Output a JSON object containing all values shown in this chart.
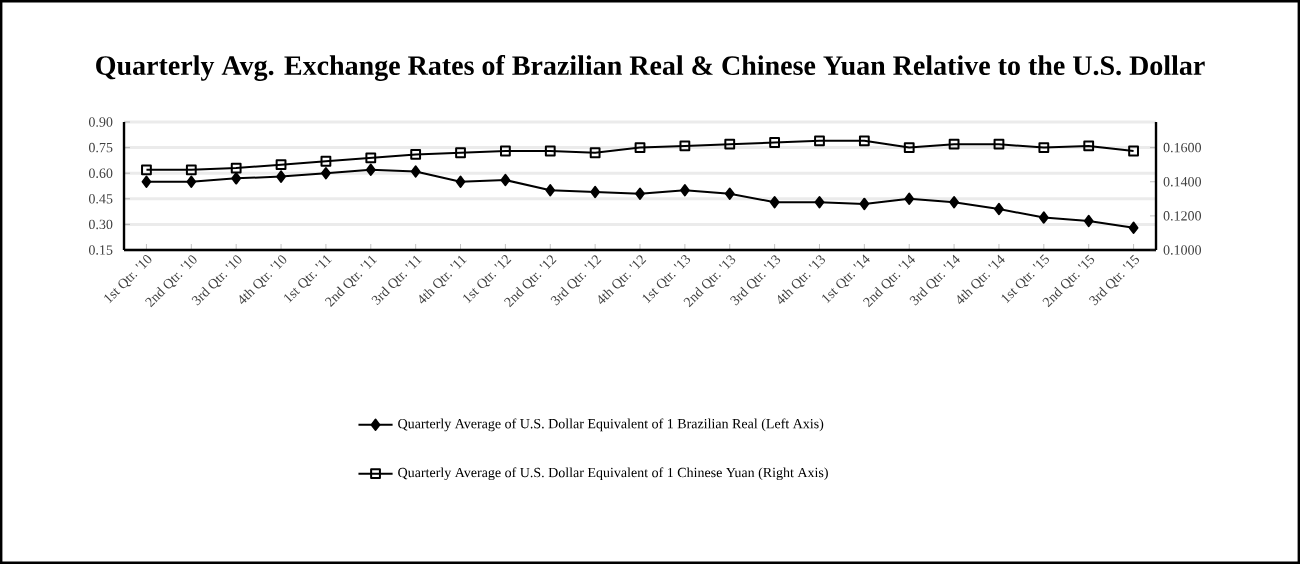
{
  "chart_data": {
    "type": "line",
    "title": "Quarterly Avg. Exchange Rates of Brazilian Real & Chinese Yuan Relative to the U.S. Dollar",
    "categories": [
      "1st Qtr. '10",
      "2nd Qtr. '10",
      "3rd Qtr. '10",
      "4th Qtr. '10",
      "1st Qtr. '11",
      "2nd Qtr. '11",
      "3rd Qtr. '11",
      "4th Qtr. '11",
      "1st Qtr. '12",
      "2nd Qtr. '12",
      "3rd Qtr. '12",
      "4th Qtr. '12",
      "1st Qtr. '13",
      "2nd Qtr. '13",
      "3rd Qtr. '13",
      "4th Qtr. '13",
      "1st Qtr. '14",
      "2nd Qtr. '14",
      "3rd Qtr. '14",
      "4th Qtr. '14",
      "1st Qtr. '15",
      "2nd Qtr. '15",
      "3rd Qtr. '15"
    ],
    "series": [
      {
        "name": "Quarterly Average of U.S. Dollar Equivalent of 1 Brazilian Real (Left Axis)",
        "color": "#000000",
        "marker": "diamond",
        "values": [
          0.55,
          0.55,
          0.57,
          0.58,
          0.6,
          0.62,
          0.61,
          0.55,
          0.56,
          0.5,
          0.49,
          0.48,
          0.5,
          0.48,
          0.43,
          0.43,
          0.42,
          0.45,
          0.43,
          0.39,
          0.34,
          0.32,
          0.28
        ]
      },
      {
        "name": "Quarterly Average of U.S. Dollar Equivalent of 1 Chinese Yuan (Right Axis)",
        "color": "#000000",
        "marker": "square",
        "axis": "y2",
        "values": [
          0.147,
          0.147,
          0.148,
          0.15,
          0.152,
          0.154,
          0.156,
          0.157,
          0.158,
          0.158,
          0.157,
          0.16,
          0.161,
          0.162,
          0.163,
          0.164,
          0.164,
          0.16,
          0.162,
          0.162,
          0.16,
          0.161,
          0.158
        ]
      }
    ],
    "ylim": [
      0.15,
      0.9
    ],
    "yticks": [
      {
        "value": 0.15,
        "label": "0.15"
      },
      {
        "value": 0.3,
        "label": "0.30"
      },
      {
        "value": 0.45,
        "label": "0.45"
      },
      {
        "value": 0.6,
        "label": "0.60"
      },
      {
        "value": 0.75,
        "label": "0.75"
      },
      {
        "value": 0.9,
        "label": "0.90"
      }
    ],
    "y2lim": [
      0.1,
      0.175
    ],
    "y2ticks": [
      {
        "value": 0.1,
        "label": "0.1000"
      },
      {
        "value": 0.12,
        "label": "0.1200"
      },
      {
        "value": 0.14,
        "label": "0.1400"
      },
      {
        "value": 0.16,
        "label": "0.1600"
      }
    ],
    "grid": "y",
    "legend": "bottom",
    "line_style": "solid"
  }
}
